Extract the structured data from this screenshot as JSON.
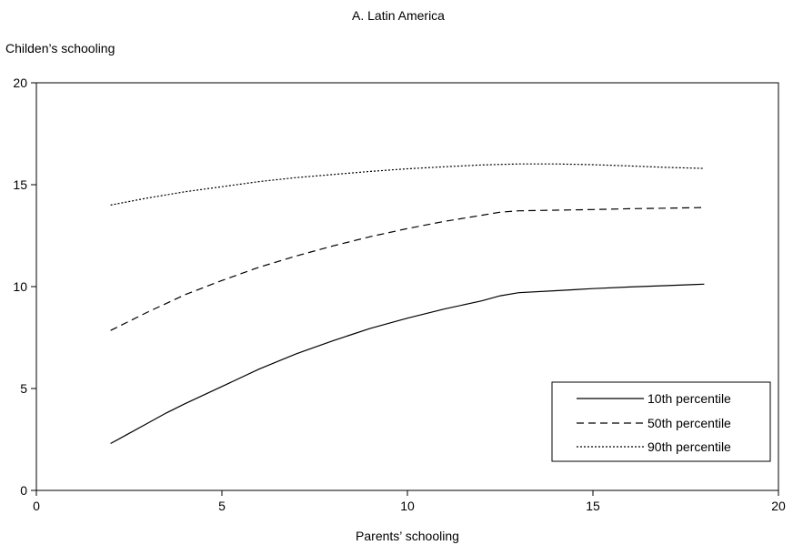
{
  "chart_data": {
    "type": "line",
    "title": "A. Latin America",
    "xlabel": "Parents’ schooling",
    "ylabel": "Childen’s schooling",
    "xlim": [
      0,
      20
    ],
    "ylim": [
      0,
      20
    ],
    "xticks": [
      "0",
      "5",
      "10",
      "15",
      "20"
    ],
    "yticks": [
      "0",
      "5",
      "10",
      "15",
      "20"
    ],
    "grid": false,
    "legend_position": "bottom-right",
    "series": [
      {
        "name": "10th percentile",
        "style": "solid",
        "x": [
          2,
          2.5,
          3,
          3.5,
          4,
          5,
          6,
          7,
          8,
          9,
          10,
          11,
          12,
          12.5,
          13,
          14,
          15,
          16,
          17,
          18
        ],
        "y": [
          2.3,
          2.8,
          3.3,
          3.8,
          4.25,
          5.1,
          5.95,
          6.7,
          7.35,
          7.95,
          8.45,
          8.9,
          9.3,
          9.55,
          9.7,
          9.8,
          9.9,
          9.98,
          10.05,
          10.12
        ]
      },
      {
        "name": "50th percentile",
        "style": "dashed",
        "x": [
          2,
          2.5,
          3,
          4,
          5,
          6,
          7,
          8,
          9,
          10,
          11,
          12,
          12.5,
          13,
          14,
          15,
          16,
          17,
          18
        ],
        "y": [
          7.85,
          8.3,
          8.75,
          9.6,
          10.3,
          10.95,
          11.5,
          12.0,
          12.45,
          12.85,
          13.2,
          13.5,
          13.65,
          13.72,
          13.75,
          13.78,
          13.82,
          13.85,
          13.88
        ]
      },
      {
        "name": "90th percentile",
        "style": "dotted",
        "x": [
          2,
          3,
          4,
          5,
          6,
          7,
          8,
          9,
          10,
          11,
          12,
          13,
          14,
          15,
          16,
          17,
          18
        ],
        "y": [
          14.0,
          14.35,
          14.65,
          14.9,
          15.15,
          15.35,
          15.5,
          15.65,
          15.78,
          15.88,
          15.97,
          16.02,
          16.02,
          15.98,
          15.92,
          15.85,
          15.8
        ]
      }
    ]
  }
}
